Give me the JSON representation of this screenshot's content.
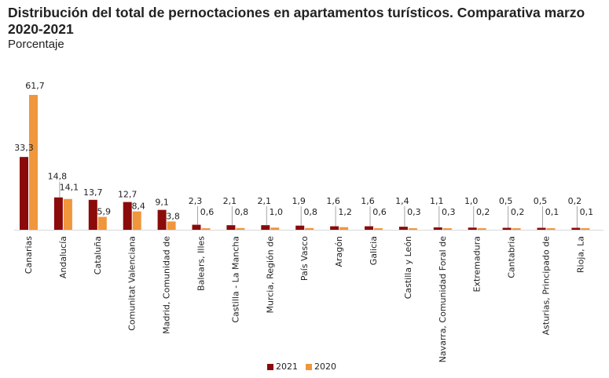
{
  "chart_data": {
    "type": "bar",
    "title": "Distribución del total de pernoctaciones en apartamentos turísticos. Comparativa marzo 2020-2021",
    "subtitle": "Porcentaje",
    "xlabel": "",
    "ylabel": "",
    "ylim": [
      0,
      65
    ],
    "grid": false,
    "legend_position": "bottom",
    "categories": [
      "Canarias",
      "Andalucía",
      "Cataluña",
      "Comunitat Valenciana",
      "Madrid, Comunidad de",
      "Balears, Illes",
      "Castilla  - La Mancha",
      "Murcia, Región de",
      "País Vasco",
      "Aragón",
      "Galicia",
      "Castilla y León",
      "Navarra, Comunidad Foral de",
      "Extremadura",
      "Cantabria",
      "Asturias, Principado de",
      "Rioja, La"
    ],
    "series": [
      {
        "name": "2021",
        "color": "#8b0a0a",
        "values": [
          33.3,
          14.8,
          13.7,
          12.7,
          9.1,
          2.3,
          2.1,
          2.1,
          1.9,
          1.6,
          1.6,
          1.4,
          1.1,
          1.0,
          0.5,
          0.5,
          0.2
        ],
        "labels": [
          "33,3",
          "14,8",
          "13,7",
          "12,7",
          "9,1",
          "2,3",
          "2,1",
          "2,1",
          "1,9",
          "1,6",
          "1,6",
          "1,4",
          "1,1",
          "1,0",
          "0,5",
          "0,5",
          "0,2"
        ]
      },
      {
        "name": "2020",
        "color": "#f0963c",
        "values": [
          61.7,
          14.1,
          5.9,
          8.4,
          3.8,
          0.6,
          0.8,
          1.0,
          0.8,
          1.2,
          0.6,
          0.3,
          0.3,
          0.2,
          0.2,
          0.1,
          0.1
        ],
        "labels": [
          "61,7",
          "14,1",
          "5,9",
          "8,4",
          "3,8",
          "0,6",
          "0,8",
          "1,0",
          "0,8",
          "1,2",
          "0,6",
          "0,3",
          "0,3",
          "0,2",
          "0,2",
          "0,1",
          "0,1"
        ]
      }
    ]
  }
}
